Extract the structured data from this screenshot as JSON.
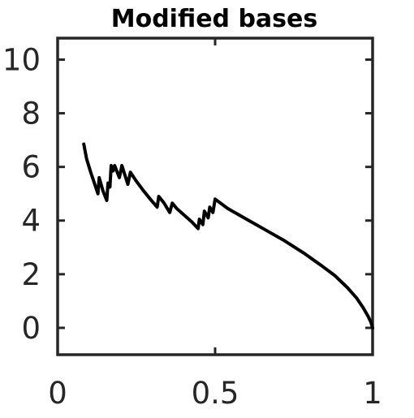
{
  "chart_data": {
    "type": "line",
    "title": "Modified bases",
    "xlabel": "",
    "ylabel": "",
    "xlim": [
      0,
      1
    ],
    "ylim": [
      -1,
      10.8
    ],
    "x_ticks": [
      0,
      0.5,
      1
    ],
    "x_tick_labels": [
      "0",
      "0.5",
      "1"
    ],
    "y_ticks": [
      0,
      2,
      4,
      6,
      8,
      10
    ],
    "y_tick_labels": [
      "0",
      "2",
      "4",
      "6",
      "8",
      "10"
    ],
    "grid": false,
    "legend": "none",
    "series": [
      {
        "color": "#000000",
        "x": [
          0.083,
          0.092,
          0.105,
          0.118,
          0.128,
          0.132,
          0.144,
          0.156,
          0.16,
          0.166,
          0.17,
          0.176,
          0.181,
          0.196,
          0.204,
          0.223,
          0.231,
          0.248,
          0.27,
          0.294,
          0.316,
          0.321,
          0.338,
          0.356,
          0.364,
          0.378,
          0.402,
          0.426,
          0.446,
          0.45,
          0.461,
          0.466,
          0.478,
          0.483,
          0.493,
          0.5,
          0.54,
          0.6,
          0.66,
          0.72,
          0.78,
          0.84,
          0.88,
          0.92,
          0.95,
          0.97,
          0.985,
          0.995,
          1.0
        ],
        "values": [
          6.85,
          6.3,
          5.8,
          5.35,
          5.0,
          5.6,
          5.1,
          4.75,
          5.4,
          5.25,
          6.05,
          5.85,
          6.05,
          5.6,
          6.05,
          5.35,
          5.8,
          5.5,
          5.15,
          4.8,
          4.5,
          4.9,
          4.65,
          4.3,
          4.65,
          4.45,
          4.2,
          3.95,
          3.7,
          4.05,
          3.85,
          4.35,
          4.1,
          4.5,
          4.3,
          4.8,
          4.45,
          4.05,
          3.65,
          3.25,
          2.8,
          2.3,
          1.95,
          1.5,
          1.1,
          0.75,
          0.45,
          0.2,
          0.0
        ]
      }
    ]
  }
}
